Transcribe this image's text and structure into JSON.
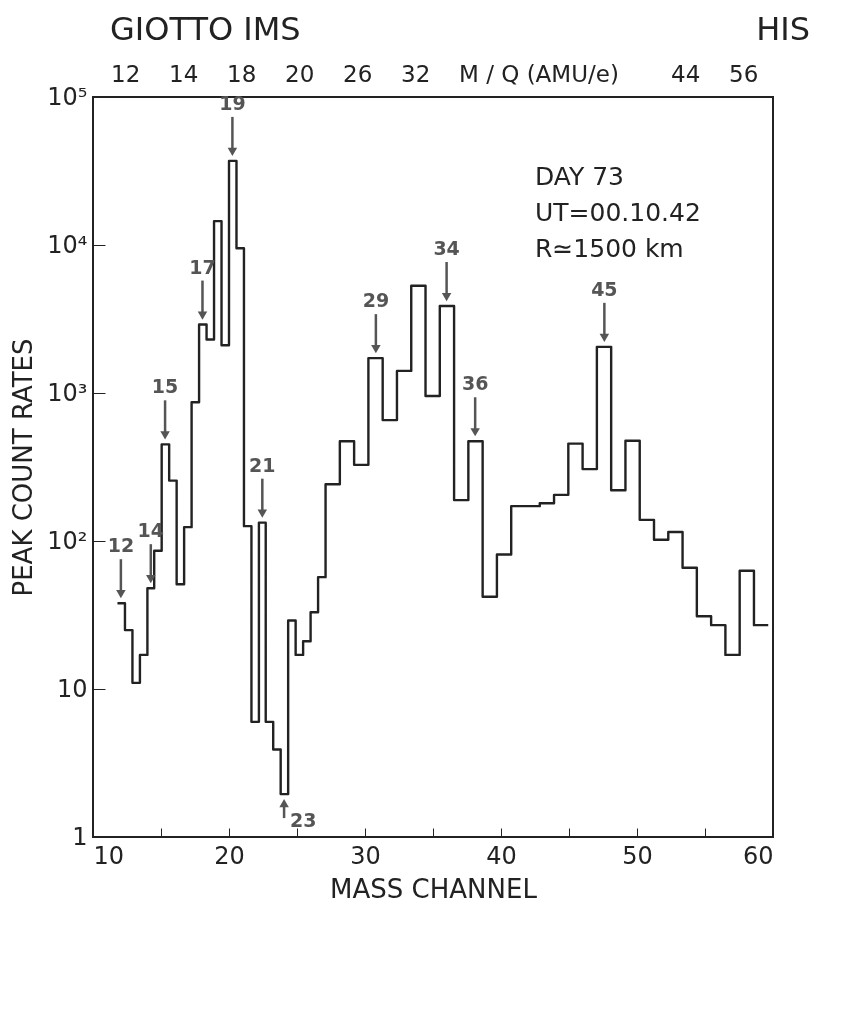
{
  "chart_data": {
    "type": "histogram",
    "title": "GIOTTO IMS",
    "subtitle": "HIS",
    "xlabel": "MASS CHANNEL",
    "ylabel": "PEAK COUNT RATES",
    "bins": [
      11.8,
      12.35,
      12.9,
      13.45,
      14.0,
      14.5,
      15.05,
      15.6,
      16.15,
      16.7,
      17.25,
      17.8,
      18.35,
      18.9,
      19.45,
      20.0,
      20.55,
      21.1,
      21.65,
      22.2,
      22.7,
      23.25,
      23.8,
      24.35,
      24.9,
      25.45,
      26.0,
      26.55,
      27.1,
      28.15,
      29.2,
      30.25,
      31.3,
      32.35,
      33.4,
      34.45,
      35.5,
      36.55,
      37.6,
      38.65,
      39.7,
      40.75,
      41.8,
      42.85,
      43.9,
      44.95,
      46.0,
      47.05,
      48.1,
      49.15,
      50.2,
      51.25,
      52.3,
      53.35,
      54.4,
      55.45,
      56.5,
      57.55,
      58.6,
      59.65
    ],
    "values": [
      38,
      25,
      11,
      17,
      48,
      86,
      450,
      256,
      51,
      124,
      865,
      2900,
      2300,
      14500,
      2100,
      37000,
      9500,
      126,
      6,
      133,
      6,
      3.9,
      1.95,
      29,
      17,
      21,
      33,
      57,
      242,
      472,
      327,
      1720,
      656,
      1410,
      5310,
      955,
      3870,
      189,
      472,
      42,
      81,
      172,
      172,
      180,
      205,
      455,
      306,
      2050,
      220,
      476,
      139,
      102,
      115,
      66,
      31,
      27,
      17,
      63,
      27
    ],
    "color": "#222222",
    "xlim": [
      10,
      60
    ],
    "xticks": [
      10,
      {
        "value": 15,
        "label": null
      },
      20,
      {
        "value": 25,
        "label": null
      },
      30,
      {
        "value": 35,
        "label": null
      },
      40,
      {
        "value": 45,
        "label": null
      },
      50,
      {
        "value": 55,
        "label": null
      },
      60
    ],
    "ylim": [
      1,
      100000
    ],
    "yticks": [
      1,
      10,
      {
        "value": 100,
        "label": "10²"
      },
      {
        "value": 1000,
        "label": "10³"
      },
      {
        "value": 10000,
        "label": "10⁴"
      },
      {
        "value": 100000,
        "label": "10⁵"
      }
    ],
    "log": true,
    "grid": false,
    "marker": "none",
    "line_style": "solid",
    "annotations": [
      "12",
      "14",
      "18",
      "20",
      "26",
      "32",
      "M / Q (AMU/e)",
      "44",
      "56",
      {
        "text": "12",
        "x": 12.05,
        "y": 38
      },
      {
        "text": "14",
        "x": 14.25,
        "y": 48
      },
      {
        "text": "15",
        "x": 15.3,
        "y": 450
      },
      {
        "text": "17",
        "x": 18.05,
        "y": 2900
      },
      {
        "text": "19",
        "x": 20.25,
        "y": 37000
      },
      {
        "text": "21",
        "x": 22.45,
        "y": 133
      },
      {
        "text": "23",
        "x": 24.05,
        "y": 1.95
      },
      {
        "text": "29",
        "x": 30.8,
        "y": 1720
      },
      {
        "text": "34",
        "x": 36.0,
        "y": 3870
      },
      {
        "text": "36",
        "x": 38.1,
        "y": 472
      },
      {
        "text": "45",
        "x": 47.6,
        "y": 2050
      },
      "DAY 73",
      "UT=00.10.42",
      "R≃1500 km"
    ]
  }
}
